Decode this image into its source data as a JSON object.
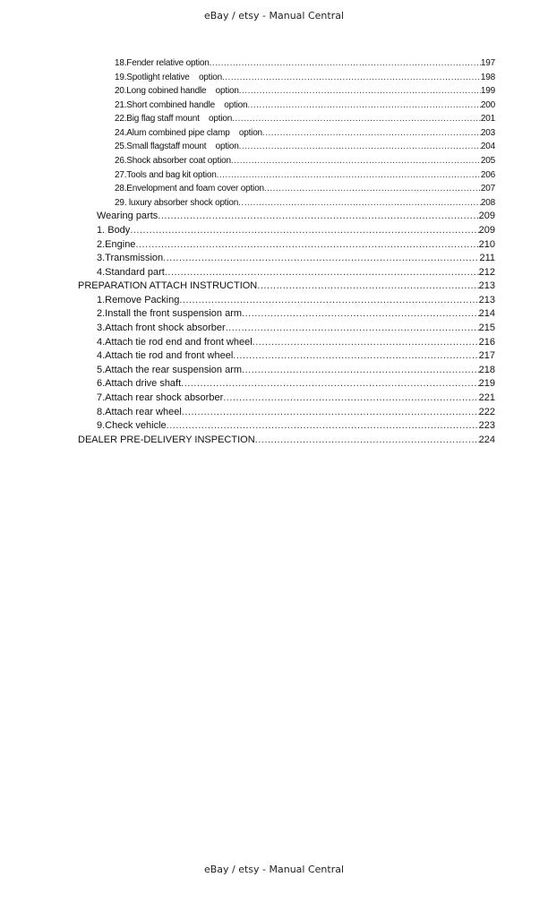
{
  "header": "eBay / etsy - Manual Central",
  "footer": "eBay / etsy - Manual Central",
  "toc": [
    {
      "level": 2,
      "title": "18.Fender relative option",
      "page": "197"
    },
    {
      "level": 2,
      "title": "19.Spotlight relative    option",
      "page": "198"
    },
    {
      "level": 2,
      "title": "20.Long cobined handle    option",
      "page": "199"
    },
    {
      "level": 2,
      "title": "21.Short combined handle    option",
      "page": "200"
    },
    {
      "level": 2,
      "title": "22.Big flag staff mount    option",
      "page": "201"
    },
    {
      "level": 2,
      "title": "24.Alum combined pipe clamp    option",
      "page": "203"
    },
    {
      "level": 2,
      "title": "25.Small flagstaff mount    option",
      "page": "204"
    },
    {
      "level": 2,
      "title": "26.Shock absorber coat option",
      "page": "205"
    },
    {
      "level": 2,
      "title": "27.Tools and bag kit option",
      "page": "206"
    },
    {
      "level": 2,
      "title": "28.Envelopment and foam cover option",
      "page": "207"
    },
    {
      "level": 2,
      "title": "29. luxury absorber shock option",
      "page": "208"
    },
    {
      "level": 1,
      "title": "Wearing parts",
      "page": "209"
    },
    {
      "level": 1,
      "title": "1. Body",
      "page": "209"
    },
    {
      "level": 1,
      "title": "2.Engine",
      "page": "210"
    },
    {
      "level": 1,
      "title": "3.Transmission",
      "page": "211"
    },
    {
      "level": 1,
      "title": "4.Standard part",
      "page": "212"
    },
    {
      "level": 0,
      "title": "PREPARATION ATTACH INSTRUCTION",
      "page": "213"
    },
    {
      "level": 1,
      "title": "1.Remove Packing",
      "page": "213"
    },
    {
      "level": 1,
      "title": "2.Install the front suspension arm",
      "page": "214"
    },
    {
      "level": 1,
      "title": "3.Attach front shock absorber",
      "page": "215"
    },
    {
      "level": 1,
      "title": "4.Attach tie rod end and front wheel",
      "page": "216"
    },
    {
      "level": 1,
      "title": "4.Attach tie rod and front wheel",
      "page": "217"
    },
    {
      "level": 1,
      "title": "5.Attach the rear suspension arm",
      "page": "218"
    },
    {
      "level": 1,
      "title": "6.Attach drive shaft",
      "page": "219"
    },
    {
      "level": 1,
      "title": "7.Attach rear shock absorber",
      "page": "221"
    },
    {
      "level": 1,
      "title": "8.Attach rear wheel",
      "page": "222"
    },
    {
      "level": 1,
      "title": "9.Check vehicle",
      "page": "223"
    },
    {
      "level": 0,
      "title": "DEALER PRE-DELIVERY INSPECTION",
      "page": "224"
    }
  ]
}
